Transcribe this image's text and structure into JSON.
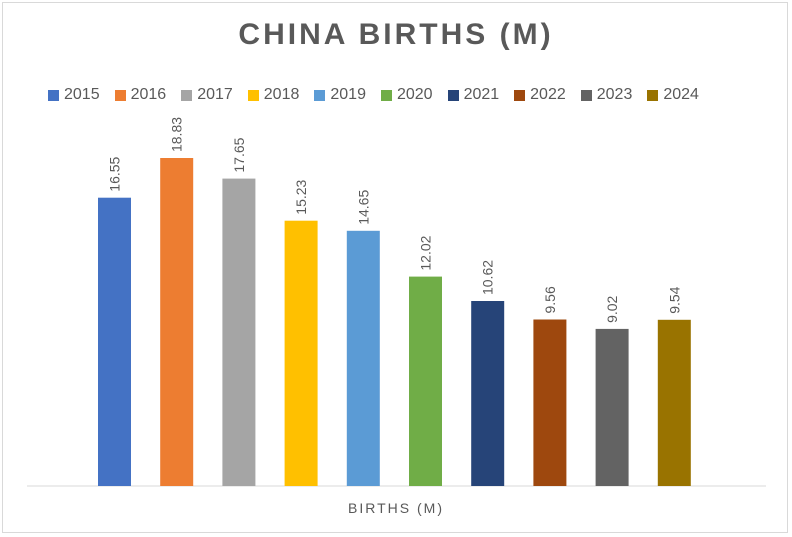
{
  "chart_data": {
    "type": "bar",
    "title": "CHINA BIRTHS (M)",
    "xlabel": "BIRTHS (M)",
    "ylabel": "",
    "ylim": [
      0,
      20
    ],
    "grid": false,
    "legend_position": "top",
    "categories": [
      "BIRTHS (M)"
    ],
    "series": [
      {
        "name": "2015",
        "values": [
          16.55
        ],
        "color": "#4472C4"
      },
      {
        "name": "2016",
        "values": [
          18.83
        ],
        "color": "#ED7D31"
      },
      {
        "name": "2017",
        "values": [
          17.65
        ],
        "color": "#A5A5A5"
      },
      {
        "name": "2018",
        "values": [
          15.23
        ],
        "color": "#FFC000"
      },
      {
        "name": "2019",
        "values": [
          14.65
        ],
        "color": "#5B9BD5"
      },
      {
        "name": "2020",
        "values": [
          12.02
        ],
        "color": "#70AD47"
      },
      {
        "name": "2021",
        "values": [
          10.62
        ],
        "color": "#264478"
      },
      {
        "name": "2022",
        "values": [
          9.56
        ],
        "color": "#9E480E"
      },
      {
        "name": "2023",
        "values": [
          9.02
        ],
        "color": "#636363"
      },
      {
        "name": "2024",
        "values": [
          9.54
        ],
        "color": "#997300"
      }
    ],
    "data_labels": [
      "16.55",
      "18.83",
      "17.65",
      "15.23",
      "14.65",
      "12.02",
      "10.62",
      "9.56",
      "9.02",
      "9.54"
    ]
  }
}
